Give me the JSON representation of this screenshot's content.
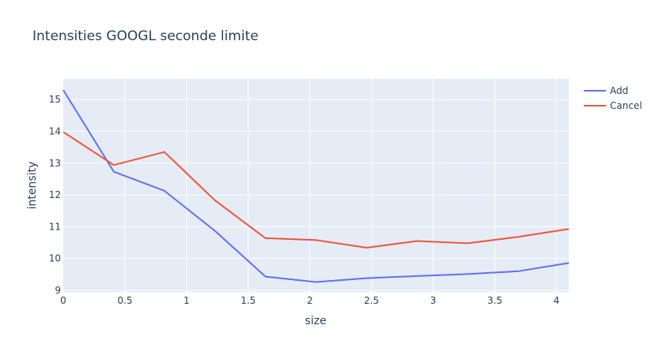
{
  "chart_data": {
    "type": "line",
    "title": "Intensities GOOGL seconde limite",
    "xlabel": "size",
    "ylabel": "intensity",
    "xlim": [
      0,
      4.1
    ],
    "ylim": [
      8.95,
      15.65
    ],
    "x_ticks": [
      0,
      0.5,
      1,
      1.5,
      2,
      2.5,
      3,
      3.5,
      4
    ],
    "x_tick_labels": [
      "0",
      "0.5",
      "1",
      "1.5",
      "2",
      "2.5",
      "3",
      "3.5",
      "4"
    ],
    "y_ticks": [
      9,
      10,
      11,
      12,
      13,
      14,
      15
    ],
    "y_tick_labels": [
      "9",
      "10",
      "11",
      "12",
      "13",
      "14",
      "15"
    ],
    "grid": true,
    "legend_position": "top-right",
    "series": [
      {
        "name": "Add",
        "color": "#636efa",
        "x": [
          0,
          0.41,
          0.82,
          1.23,
          1.64,
          2.05,
          2.46,
          2.87,
          3.28,
          3.69,
          4.1
        ],
        "y": [
          15.3,
          12.73,
          12.13,
          10.87,
          9.43,
          9.26,
          9.38,
          9.45,
          9.51,
          9.6,
          9.86
        ]
      },
      {
        "name": "Cancel",
        "color": "#ef553b",
        "x": [
          0,
          0.41,
          0.82,
          1.23,
          1.64,
          2.05,
          2.46,
          2.87,
          3.28,
          3.69,
          4.1
        ],
        "y": [
          13.98,
          12.94,
          13.35,
          11.83,
          10.64,
          10.58,
          10.34,
          10.55,
          10.48,
          10.68,
          10.93
        ]
      }
    ]
  }
}
